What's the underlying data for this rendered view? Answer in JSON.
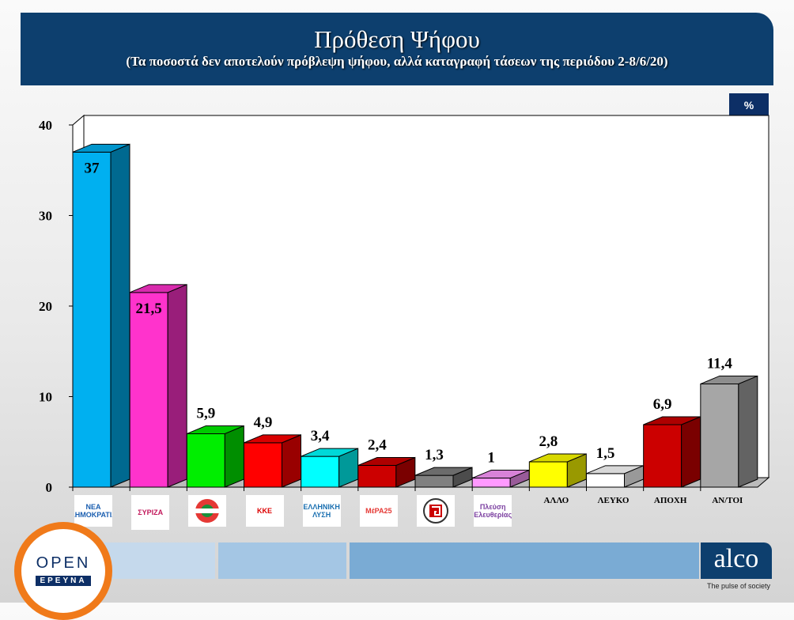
{
  "header": {
    "title": "Πρόθεση Ψήφου",
    "subtitle": "(Τα ποσοστά δεν αποτελούν πρόβλεψη ψήφου, αλλά καταγραφή τάσεων της περιόδου 2-8/6/20)"
  },
  "unit_badge": "%",
  "chart_data": {
    "type": "bar",
    "style": "3d",
    "title": "Πρόθεση Ψήφου",
    "ylim": [
      0,
      40
    ],
    "yticks": [
      0,
      10,
      20,
      30,
      40
    ],
    "grid": false,
    "categories": [
      "ΝΔ",
      "ΣΥΡΙΖΑ",
      "ΚΙΝΑΛ",
      "ΚΚΕ",
      "ΕΛΛΗΝΙΚΗ ΛΥΣΗ",
      "ΜέΡΑ25",
      "ΧΑ",
      "Πλεύση Ελευθερίας",
      "ΑΛΛΟ",
      "ΛΕΥΚΟ",
      "ΑΠΟΧΗ",
      "ΑΝ/ΤΟΙ"
    ],
    "values": [
      37,
      21.5,
      5.9,
      4.9,
      3.4,
      2.4,
      1.3,
      1,
      2.8,
      1.5,
      6.9,
      11.4
    ],
    "value_labels": [
      "37",
      "21,5",
      "5,9",
      "4,9",
      "3,4",
      "2,4",
      "1,3",
      "1",
      "2,8",
      "1,5",
      "6,9",
      "11,4"
    ],
    "colors": [
      "#00b0f0",
      "#ff33cc",
      "#00ee00",
      "#ff0000",
      "#00ffff",
      "#cc0000",
      "#808080",
      "#ff99ff",
      "#ffff00",
      "#ffffff",
      "#cc0000",
      "#a6a6a6"
    ],
    "text_category_labels": [
      "",
      "",
      "",
      "",
      "",
      "",
      "",
      "",
      "ΑΛΛΟ",
      "ΛΕΥΚΟ",
      "ΑΠΟΧΗ",
      "ΑΝ/ΤΟΙ"
    ],
    "logos": [
      "ΝΕΑ ΔΗΜΟΚΡΑΤΙΑ",
      "ΣΥΡΙΖΑ",
      "",
      "ΚΚΕ",
      "ΕΛΛΗΝΙΚΗ ΛΥΣΗ",
      "ΜέΡΑ25",
      "",
      "Πλεύση Ελευθερίας"
    ]
  },
  "footer": {
    "open_logo": "OPEN",
    "open_sub": "ΕΡΕΥΝΑ",
    "alco_logo": "alco",
    "alco_tagline": "The pulse of society",
    "strip_colors": [
      "#c5d9ec",
      "#a4c6e4",
      "#7aabd4"
    ]
  }
}
